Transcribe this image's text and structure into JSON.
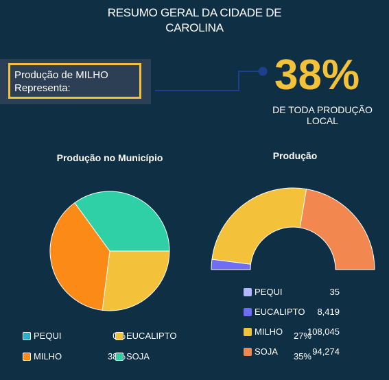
{
  "header": {
    "title_line1": "RESUMO GERAL DA CIDADE DE",
    "title_line2": "CAROLINA"
  },
  "callout": {
    "label_line1": "Produção de MILHO",
    "label_line2": "Representa:",
    "percent": "38%",
    "sub_line1": "DE TODA PRODUÇÃO",
    "sub_line2": "LOCAL",
    "box_border_color": "#f3c23a",
    "accent_color": "#f3c23a",
    "connector_color": "#1e3f8a"
  },
  "chart_data": [
    {
      "type": "pie",
      "title": "Produção no Município",
      "series": [
        {
          "name": "PEQUI",
          "value": 0,
          "label": "0%",
          "color": "#31a9c8"
        },
        {
          "name": "EUCALIPTO",
          "value": 27,
          "label": "27%",
          "color": "#f3c13a"
        },
        {
          "name": "MILHO",
          "value": 38,
          "label": "38%",
          "color": "#fb8a17"
        },
        {
          "name": "SOJA",
          "value": 35,
          "label": "35%",
          "color": "#2fd0a5"
        }
      ],
      "legend_position": "bottom"
    },
    {
      "type": "pie",
      "subtype": "semi-donut",
      "title": "Produção",
      "series": [
        {
          "name": "PEQUI",
          "value": 35,
          "label": "35",
          "color": "#b3b5ff"
        },
        {
          "name": "EUCALIPTO",
          "value": 8419,
          "label": "8,419",
          "color": "#6e6df4"
        },
        {
          "name": "MILHO",
          "value": 108045,
          "label": "108,045",
          "color": "#f3c13a"
        },
        {
          "name": "SOJA",
          "value": 94274,
          "label": "94,274",
          "color": "#f2874f"
        }
      ],
      "legend_position": "bottom"
    }
  ]
}
